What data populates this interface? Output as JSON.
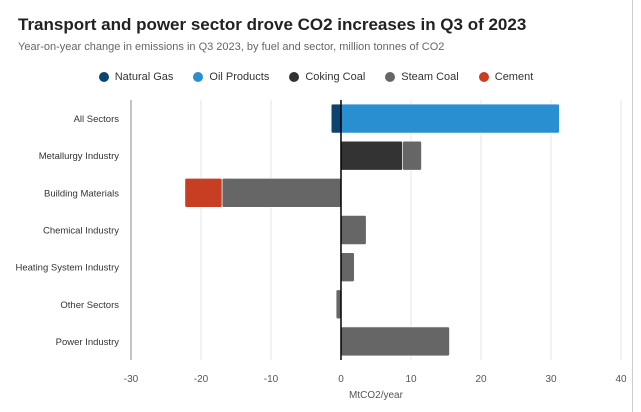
{
  "chart_data": {
    "type": "bar",
    "orientation": "horizontal",
    "stacked": true,
    "title": "Transport and power sector drove CO2 increases in Q3 of 2023",
    "subtitle": "Year-on-year change in emissions in Q3 2023, by fuel and sector, million tonnes of CO2",
    "xlabel": "MtCO2/year",
    "ylabel": "",
    "xlim": [
      -30,
      40
    ],
    "xticks": [
      -30,
      -20,
      -10,
      0,
      10,
      20,
      30,
      40
    ],
    "grid": true,
    "legend_position": "top",
    "categories": [
      "All Sectors",
      "Metallurgy Industry",
      "Building Materials",
      "Chemical Industry",
      "Heating System Industry",
      "Other Sectors",
      "Power Industry"
    ],
    "series": [
      {
        "name": "Natural Gas",
        "color": "#0b4470",
        "values": [
          -1.4,
          0,
          0,
          0,
          0,
          0,
          0
        ]
      },
      {
        "name": "Oil Products",
        "color": "#2a8fd0",
        "values": [
          31.2,
          0,
          0,
          0,
          0,
          0,
          0
        ]
      },
      {
        "name": "Coking Coal",
        "color": "#333333",
        "values": [
          0,
          8.8,
          0,
          0,
          0,
          0,
          0
        ]
      },
      {
        "name": "Steam Coal",
        "color": "#666666",
        "values": [
          0,
          2.7,
          -17.0,
          3.6,
          1.9,
          -0.7,
          15.5
        ]
      },
      {
        "name": "Cement",
        "color": "#c73e22",
        "values": [
          0,
          0,
          -5.3,
          0,
          0,
          0,
          0
        ]
      }
    ]
  }
}
